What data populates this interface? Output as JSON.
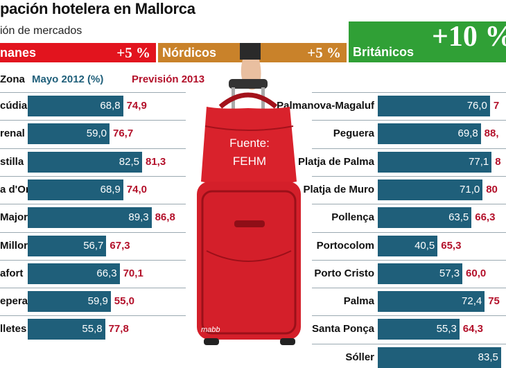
{
  "title": "pación hotelera en Mallorca",
  "subtitle": "ión de mercados",
  "markets": [
    {
      "name": "nanes",
      "pct": "+5 %",
      "color": "#e2141e"
    },
    {
      "name": "Nórdicos",
      "pct": "+5 %",
      "color": "#c9822a"
    },
    {
      "name": "Británicos",
      "pct": "+10 %",
      "color": "#30a036"
    }
  ],
  "header": {
    "zona": "Zona",
    "mayo": "Mayo 2012 (%)",
    "prevision": "Previsión 2013"
  },
  "source_tag": {
    "line1": "Fuente:",
    "line2": "FEHM"
  },
  "credit": "mabb",
  "chart_data": [
    {
      "type": "bar",
      "orientation": "horizontal",
      "series": [
        {
          "name": "Mayo 2012 (%)",
          "color": "#1f5f7a"
        },
        {
          "name": "Previsión 2013",
          "color": "#b3102a"
        }
      ],
      "rows": [
        {
          "label": "cúdia",
          "mayo_text": "68,8",
          "prev_text": "74,9",
          "value": 68.8
        },
        {
          "label": "renal",
          "mayo_text": "59,0",
          "prev_text": "76,7",
          "value": 59.0
        },
        {
          "label": "stilla",
          "mayo_text": "82,5",
          "prev_text": "81,3",
          "value": 82.5
        },
        {
          "label": "a d'Or",
          "mayo_text": "68,9",
          "prev_text": "74,0",
          "value": 68.9
        },
        {
          "label": "Major",
          "mayo_text": "89,3",
          "prev_text": "86,8",
          "value": 89.3
        },
        {
          "label": "Millor",
          "mayo_text": "56,7",
          "prev_text": "67,3",
          "value": 56.7
        },
        {
          "label": "afort",
          "mayo_text": "66,3",
          "prev_text": "70,1",
          "value": 66.3
        },
        {
          "label": "epera",
          "mayo_text": "59,9",
          "prev_text": "55,0",
          "value": 59.9
        },
        {
          "label": "lletes",
          "mayo_text": "55,8",
          "prev_text": "77,8",
          "value": 55.8
        }
      ]
    },
    {
      "type": "bar",
      "orientation": "horizontal",
      "series": [
        {
          "name": "Mayo 2012 (%)",
          "color": "#1f5f7a"
        },
        {
          "name": "Previsión 2013",
          "color": "#b3102a"
        }
      ],
      "rows": [
        {
          "label": "Palmanova-Magaluf",
          "mayo_text": "76,0",
          "prev_text": "7",
          "value": 76.0
        },
        {
          "label": "Peguera",
          "mayo_text": "69,8",
          "prev_text": "88,",
          "value": 69.8
        },
        {
          "label": "Platja de Palma",
          "mayo_text": "77,1",
          "prev_text": "8",
          "value": 77.1
        },
        {
          "label": "Platja de Muro",
          "mayo_text": "71,0",
          "prev_text": "80",
          "value": 71.0
        },
        {
          "label": "Pollença",
          "mayo_text": "63,5",
          "prev_text": "66,3",
          "value": 63.5
        },
        {
          "label": "Portocolom",
          "mayo_text": "40,5",
          "prev_text": "65,3",
          "value": 40.5
        },
        {
          "label": "Porto Cristo",
          "mayo_text": "57,3",
          "prev_text": "60,0",
          "value": 57.3
        },
        {
          "label": "Palma",
          "mayo_text": "72,4",
          "prev_text": "75",
          "value": 72.4
        },
        {
          "label": "Santa Ponça",
          "mayo_text": "55,3",
          "prev_text": "64,3",
          "value": 55.3
        },
        {
          "label": "Sóller",
          "mayo_text": "83,5",
          "prev_text": "",
          "value": 83.5
        }
      ]
    }
  ]
}
